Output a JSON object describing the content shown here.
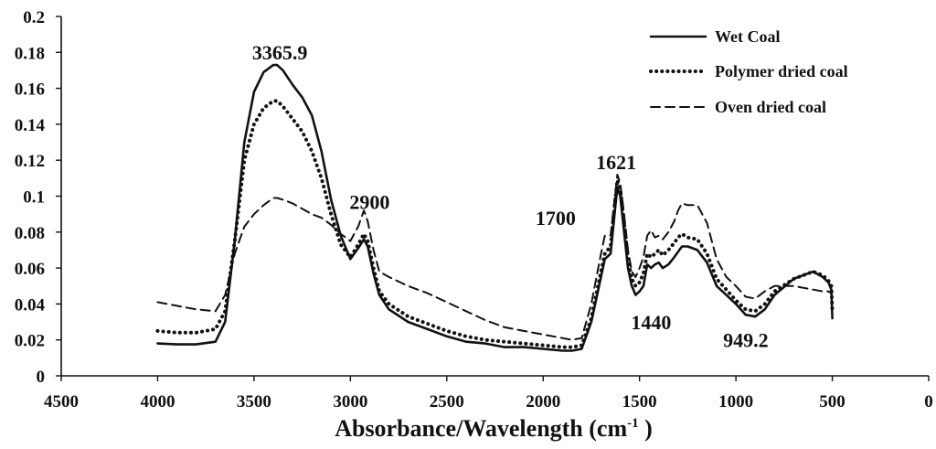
{
  "chart_data": {
    "type": "line",
    "title": "",
    "xlabel": "Absorbance/Wavelength (cm",
    "xlabel_sup": "-1",
    "xlabel_close": " )",
    "ylabel": "",
    "xlim": [
      4500,
      0
    ],
    "ylim": [
      0,
      0.2
    ],
    "x_reversed": true,
    "grid": false,
    "legend_position": "top-right",
    "x_ticks": [
      4500,
      4000,
      3500,
      3000,
      2500,
      2000,
      1500,
      1000,
      500,
      0
    ],
    "y_ticks": [
      0,
      0.02,
      0.04,
      0.06,
      0.08,
      0.1,
      0.12,
      0.14,
      0.16,
      0.18,
      0.2
    ],
    "x_tick_labels": [
      "4500",
      "4000",
      "3500",
      "3000",
      "2500",
      "2000",
      "1500",
      "1000",
      "500",
      "0"
    ],
    "y_tick_labels": [
      "0",
      "0.02",
      "0.04",
      "0.06",
      "0.08",
      "0.1",
      "0.12",
      "0.14",
      "0.16",
      "0.18",
      "0.2"
    ],
    "series": [
      {
        "name": "Wet Coal",
        "style": "solid",
        "x": [
          4000,
          3900,
          3800,
          3700,
          3650,
          3600,
          3550,
          3500,
          3450,
          3400,
          3380,
          3350,
          3300,
          3250,
          3200,
          3150,
          3100,
          3050,
          3000,
          2960,
          2930,
          2910,
          2880,
          2850,
          2800,
          2700,
          2600,
          2500,
          2400,
          2300,
          2200,
          2100,
          2000,
          1900,
          1850,
          1800,
          1750,
          1700,
          1680,
          1650,
          1630,
          1615,
          1600,
          1580,
          1560,
          1540,
          1520,
          1500,
          1480,
          1460,
          1440,
          1420,
          1400,
          1380,
          1350,
          1320,
          1300,
          1280,
          1250,
          1200,
          1150,
          1100,
          1050,
          1000,
          950,
          900,
          850,
          800,
          700,
          600,
          550,
          520,
          505,
          500
        ],
        "y": [
          0.018,
          0.0175,
          0.0175,
          0.019,
          0.03,
          0.075,
          0.13,
          0.158,
          0.169,
          0.173,
          0.173,
          0.17,
          0.162,
          0.155,
          0.145,
          0.125,
          0.098,
          0.078,
          0.065,
          0.071,
          0.076,
          0.072,
          0.057,
          0.045,
          0.037,
          0.03,
          0.026,
          0.022,
          0.019,
          0.018,
          0.016,
          0.016,
          0.015,
          0.014,
          0.014,
          0.015,
          0.03,
          0.055,
          0.065,
          0.068,
          0.09,
          0.105,
          0.1,
          0.08,
          0.06,
          0.05,
          0.045,
          0.047,
          0.05,
          0.062,
          0.06,
          0.062,
          0.063,
          0.06,
          0.062,
          0.066,
          0.069,
          0.072,
          0.072,
          0.07,
          0.063,
          0.05,
          0.045,
          0.04,
          0.034,
          0.033,
          0.037,
          0.045,
          0.054,
          0.058,
          0.055,
          0.052,
          0.048,
          0.032
        ]
      },
      {
        "name": "Polymer dried coal",
        "style": "dotted",
        "x": [
          4000,
          3900,
          3800,
          3700,
          3650,
          3600,
          3550,
          3500,
          3450,
          3400,
          3380,
          3350,
          3300,
          3250,
          3200,
          3150,
          3100,
          3050,
          3000,
          2960,
          2930,
          2910,
          2880,
          2850,
          2800,
          2700,
          2600,
          2500,
          2400,
          2300,
          2200,
          2100,
          2000,
          1900,
          1850,
          1800,
          1750,
          1700,
          1680,
          1650,
          1630,
          1615,
          1600,
          1580,
          1560,
          1540,
          1520,
          1500,
          1480,
          1460,
          1440,
          1420,
          1400,
          1380,
          1350,
          1320,
          1300,
          1280,
          1250,
          1200,
          1150,
          1100,
          1050,
          1000,
          950,
          900,
          850,
          800,
          700,
          600,
          550,
          520,
          505,
          500
        ],
        "y": [
          0.025,
          0.024,
          0.024,
          0.026,
          0.036,
          0.075,
          0.12,
          0.14,
          0.149,
          0.153,
          0.153,
          0.15,
          0.143,
          0.136,
          0.125,
          0.11,
          0.09,
          0.073,
          0.066,
          0.073,
          0.079,
          0.075,
          0.06,
          0.047,
          0.04,
          0.033,
          0.029,
          0.025,
          0.022,
          0.02,
          0.019,
          0.018,
          0.017,
          0.016,
          0.016,
          0.017,
          0.032,
          0.058,
          0.068,
          0.072,
          0.094,
          0.109,
          0.104,
          0.085,
          0.065,
          0.054,
          0.05,
          0.052,
          0.057,
          0.068,
          0.066,
          0.068,
          0.07,
          0.067,
          0.07,
          0.074,
          0.077,
          0.079,
          0.077,
          0.076,
          0.068,
          0.054,
          0.048,
          0.042,
          0.037,
          0.036,
          0.04,
          0.047,
          0.054,
          0.058,
          0.056,
          0.053,
          0.05,
          0.036
        ]
      },
      {
        "name": "Oven dried coal",
        "style": "dashed",
        "x": [
          4000,
          3900,
          3800,
          3700,
          3650,
          3600,
          3550,
          3500,
          3450,
          3400,
          3380,
          3350,
          3300,
          3250,
          3200,
          3150,
          3100,
          3050,
          3000,
          2960,
          2930,
          2910,
          2880,
          2850,
          2800,
          2700,
          2600,
          2500,
          2400,
          2300,
          2200,
          2100,
          2000,
          1900,
          1850,
          1800,
          1750,
          1700,
          1680,
          1650,
          1630,
          1615,
          1600,
          1580,
          1560,
          1540,
          1520,
          1500,
          1480,
          1460,
          1440,
          1420,
          1400,
          1380,
          1350,
          1320,
          1300,
          1280,
          1250,
          1200,
          1150,
          1100,
          1050,
          1000,
          950,
          900,
          850,
          800,
          700,
          600,
          550,
          520,
          505,
          500
        ],
        "y": [
          0.041,
          0.039,
          0.037,
          0.036,
          0.045,
          0.068,
          0.083,
          0.09,
          0.095,
          0.099,
          0.099,
          0.098,
          0.096,
          0.093,
          0.09,
          0.088,
          0.084,
          0.079,
          0.075,
          0.083,
          0.092,
          0.086,
          0.07,
          0.058,
          0.055,
          0.05,
          0.046,
          0.041,
          0.036,
          0.031,
          0.027,
          0.025,
          0.023,
          0.021,
          0.02,
          0.021,
          0.04,
          0.068,
          0.078,
          0.078,
          0.098,
          0.112,
          0.107,
          0.09,
          0.07,
          0.058,
          0.055,
          0.06,
          0.066,
          0.078,
          0.081,
          0.077,
          0.078,
          0.076,
          0.08,
          0.086,
          0.092,
          0.096,
          0.095,
          0.095,
          0.085,
          0.065,
          0.055,
          0.05,
          0.044,
          0.043,
          0.047,
          0.05,
          0.05,
          0.048,
          0.047,
          0.047,
          0.046,
          0.042
        ]
      }
    ],
    "annotations": [
      {
        "text": "3365.9",
        "x": 3365.9,
        "y": 0.176
      },
      {
        "text": "2900",
        "x": 2900,
        "y": 0.093
      },
      {
        "text": "1700",
        "x": 1935,
        "y": 0.084
      },
      {
        "text": "1621",
        "x": 1621,
        "y": 0.115
      },
      {
        "text": "1440",
        "x": 1440,
        "y": 0.026
      },
      {
        "text": "949.2",
        "x": 949.2,
        "y": 0.016
      }
    ]
  }
}
